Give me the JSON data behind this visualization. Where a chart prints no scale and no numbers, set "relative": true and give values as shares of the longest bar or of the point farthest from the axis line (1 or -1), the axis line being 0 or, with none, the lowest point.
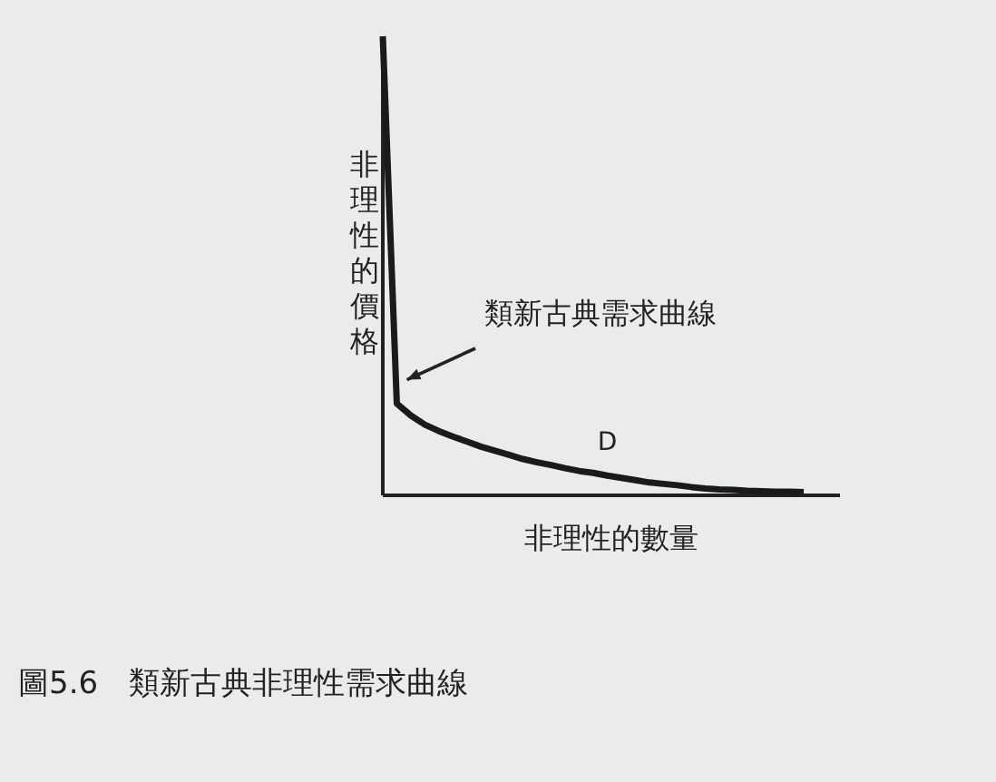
{
  "chart_data": {
    "type": "line",
    "relative": true,
    "xlabel": "非理性的數量",
    "ylabel": "非理性的價格",
    "categories": [
      null,
      null,
      null,
      null,
      null,
      null,
      null,
      null,
      null,
      null,
      null,
      null,
      null,
      null,
      null,
      null,
      null,
      null,
      null,
      null,
      null,
      null,
      null,
      null,
      null,
      null,
      null,
      null,
      null,
      null,
      null
    ],
    "series": [
      {
        "name": "D",
        "color": "#1a1a1a",
        "values": [
          1.0,
          0.2,
          0.174,
          0.154,
          0.14,
          0.128,
          0.117,
          0.106,
          0.097,
          0.088,
          0.079,
          0.072,
          0.066,
          0.059,
          0.053,
          0.049,
          0.043,
          0.038,
          0.033,
          0.028,
          0.025,
          0.022,
          0.018,
          0.015,
          0.013,
          0.012,
          0.01,
          0.009,
          0.008,
          0.008,
          0.007
        ]
      }
    ],
    "annotations": [
      "類新古典需求曲線",
      "圖5.6　類新古典非理性需求曲線"
    ]
  }
}
